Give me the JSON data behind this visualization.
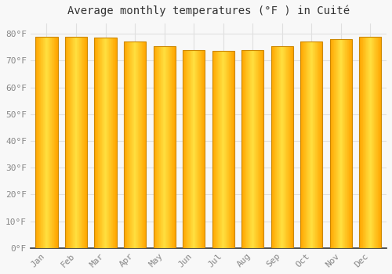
{
  "title": "Average monthly temperatures (°F ) in Cuité",
  "months": [
    "Jan",
    "Feb",
    "Mar",
    "Apr",
    "May",
    "Jun",
    "Jul",
    "Aug",
    "Sep",
    "Oct",
    "Nov",
    "Dec"
  ],
  "values": [
    79,
    79,
    78.5,
    77,
    75.5,
    74,
    73.5,
    74,
    75.5,
    77,
    78,
    79
  ],
  "bar_edge_color": "#CC8800",
  "bar_center_color": "#FFDD44",
  "bar_outer_color": "#FFA500",
  "background_color": "#F8F8F8",
  "grid_color": "#E0E0E0",
  "ytick_labels": [
    "0°F",
    "10°F",
    "20°F",
    "30°F",
    "40°F",
    "50°F",
    "60°F",
    "70°F",
    "80°F"
  ],
  "ytick_values": [
    0,
    10,
    20,
    30,
    40,
    50,
    60,
    70,
    80
  ],
  "ylim": [
    0,
    84
  ],
  "title_fontsize": 10,
  "tick_fontsize": 8,
  "tick_color": "#888888",
  "title_color": "#333333",
  "spine_color": "#333333",
  "bar_width": 0.75
}
